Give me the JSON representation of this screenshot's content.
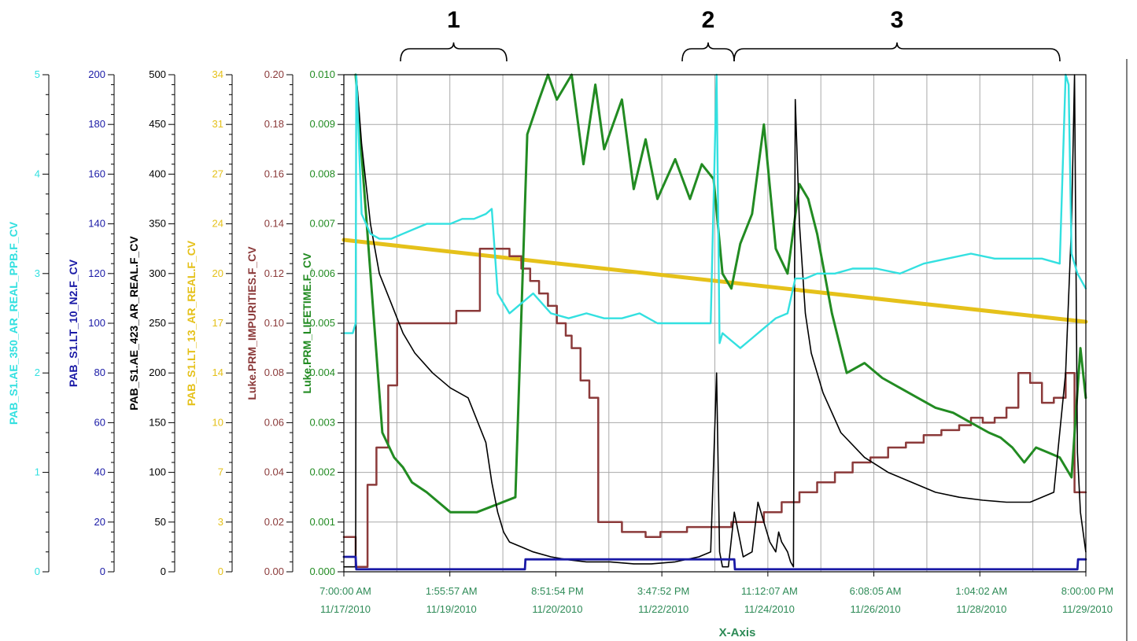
{
  "chart_data": {
    "type": "line",
    "xlabel": "X-Axis",
    "x_tick_labels": [
      [
        "7:00:00 AM",
        "11/17/2010"
      ],
      [
        "1:55:57 AM",
        "11/19/2010"
      ],
      [
        "8:51:54 PM",
        "11/20/2010"
      ],
      [
        "3:47:52 PM",
        "11/22/2010"
      ],
      [
        "11:12:07 AM",
        "11/24/2010"
      ],
      [
        "6:08:05 AM",
        "11/26/2010"
      ],
      [
        "1:04:02 AM",
        "11/28/2010"
      ],
      [
        "8:00:00 PM",
        "11/29/2010"
      ]
    ],
    "x_range_days": [
      0,
      12.5417
    ],
    "annotations": [
      {
        "label": "1",
        "from_day": 0.37,
        "to_day": 2.72
      },
      {
        "label": "2",
        "from_day": 6.55,
        "to_day": 7.63
      },
      {
        "label": "3",
        "from_day": 7.63,
        "to_day": 15.0
      }
    ],
    "axes": [
      {
        "id": "ax1",
        "label": "PAB_S1.AE_350_AR_REAL_PPB.F_CV",
        "color": "#33e0e0",
        "ylim": [
          0,
          5
        ],
        "ticks": [
          "0",
          "1",
          "2",
          "3",
          "4",
          "5"
        ]
      },
      {
        "id": "ax2",
        "label": "PAB_S1.LT_10_N2.F_CV",
        "color": "#1a1aa6",
        "ylim": [
          0,
          200
        ],
        "ticks": [
          "0",
          "20",
          "40",
          "60",
          "80",
          "100",
          "120",
          "140",
          "160",
          "180",
          "200"
        ]
      },
      {
        "id": "ax3",
        "label": "PAB_S1.AE_423_AR_REAL.F_CV",
        "color": "#000000",
        "ylim": [
          0,
          500
        ],
        "ticks": [
          "0",
          "50",
          "100",
          "150",
          "200",
          "250",
          "300",
          "350",
          "400",
          "450",
          "500"
        ]
      },
      {
        "id": "ax4",
        "label": "PAB_S1.LT_13_AR_REAL.F_CV",
        "color": "#e5c11a",
        "ylim": [
          0,
          34
        ],
        "ticks": [
          "0",
          "3",
          "7",
          "10",
          "14",
          "17",
          "20",
          "24",
          "27",
          "31",
          "34"
        ]
      },
      {
        "id": "ax5",
        "label": "Luke.PRM_IMPURITIES.F_CV",
        "color": "#8b3a3a",
        "ylim": [
          0,
          0.2
        ],
        "ticks": [
          "0.00",
          "0.02",
          "0.04",
          "0.06",
          "0.08",
          "0.10",
          "0.12",
          "0.14",
          "0.16",
          "0.18",
          "0.20"
        ]
      },
      {
        "id": "ax6",
        "label": "Luke.PRM_LIFETIME.F_CV",
        "color": "#228b22",
        "ylim": [
          0,
          0.01
        ],
        "ticks": [
          "0.000",
          "0.001",
          "0.002",
          "0.003",
          "0.004",
          "0.005",
          "0.006",
          "0.007",
          "0.008",
          "0.009",
          "0.010"
        ]
      }
    ],
    "series": [
      {
        "name": "PAB_S1.LT_13_AR_REAL.F_CV",
        "axis": "ax4",
        "color": "#e5c11a",
        "width": 5,
        "x": [
          0,
          12.54
        ],
        "y": [
          22.7,
          17.1
        ]
      },
      {
        "name": "Luke.PRM_IMPURITIES.F_CV",
        "axis": "ax5",
        "color": "#8b3a3a",
        "width": 2.5,
        "x": [
          0,
          0.2,
          0.2,
          0.4,
          0.4,
          0.55,
          0.55,
          0.75,
          0.75,
          0.9,
          0.9,
          1.05,
          1.05,
          1.25,
          1.25,
          1.55,
          1.55,
          1.9,
          1.9,
          2.3,
          2.3,
          2.45,
          2.45,
          2.5,
          2.5,
          2.8,
          2.8,
          3.0,
          3.0,
          3.15,
          3.15,
          3.3,
          3.3,
          3.45,
          3.45,
          3.6,
          3.6,
          3.75,
          3.75,
          3.85,
          3.85,
          4.0,
          4.0,
          4.15,
          4.15,
          4.3,
          4.3,
          4.5,
          4.5,
          4.7,
          4.7,
          4.85,
          4.85,
          5.1,
          5.1,
          5.35,
          5.35,
          5.6,
          5.6,
          5.8,
          5.8,
          6.05,
          6.05,
          6.3,
          6.3,
          6.55,
          6.55,
          7.1,
          7.1,
          7.4,
          7.4,
          7.7,
          7.7,
          8.0,
          8.0,
          8.3,
          8.3,
          8.6,
          8.6,
          8.9,
          8.9,
          9.2,
          9.2,
          9.5,
          9.5,
          9.8,
          9.8,
          10.1,
          10.1,
          10.4,
          10.4,
          10.6,
          10.6,
          10.8,
          10.8,
          11.0,
          11.0,
          11.2,
          11.2,
          11.4,
          11.4,
          11.6,
          11.6,
          11.8,
          11.8,
          12.0,
          12.0,
          12.2,
          12.2,
          12.35,
          12.35,
          12.54
        ],
        "y": [
          0.014,
          0.014,
          0.002,
          0.002,
          0.035,
          0.035,
          0.05,
          0.05,
          0.075,
          0.075,
          0.1,
          0.1,
          0.1,
          0.1,
          0.1,
          0.1,
          0.1,
          0.1,
          0.105,
          0.105,
          0.13,
          0.13,
          0.13,
          0.13,
          0.13,
          0.13,
          0.127,
          0.127,
          0.122,
          0.122,
          0.117,
          0.117,
          0.112,
          0.112,
          0.107,
          0.107,
          0.1,
          0.1,
          0.095,
          0.095,
          0.09,
          0.09,
          0.077,
          0.077,
          0.07,
          0.07,
          0.02,
          0.02,
          0.02,
          0.02,
          0.016,
          0.016,
          0.016,
          0.016,
          0.014,
          0.014,
          0.016,
          0.016,
          0.016,
          0.016,
          0.018,
          0.018,
          0.018,
          0.018,
          0.018,
          0.018,
          0.02,
          0.02,
          0.024,
          0.024,
          0.028,
          0.028,
          0.032,
          0.032,
          0.036,
          0.036,
          0.04,
          0.04,
          0.044,
          0.044,
          0.046,
          0.046,
          0.05,
          0.05,
          0.052,
          0.052,
          0.055,
          0.055,
          0.057,
          0.057,
          0.059,
          0.059,
          0.062,
          0.062,
          0.06,
          0.06,
          0.062,
          0.062,
          0.066,
          0.066,
          0.08,
          0.08,
          0.076,
          0.076,
          0.068,
          0.068,
          0.07,
          0.07,
          0.08,
          0.08,
          0.032,
          0.032
        ]
      },
      {
        "name": "Luke.PRM_LIFETIME.F_CV",
        "axis": "ax6",
        "color": "#228b22",
        "width": 3,
        "x": [
          0.2,
          0.2,
          0.45,
          0.45,
          0.65,
          0.65,
          0.85,
          0.85,
          1.0,
          1.0,
          1.15,
          1.15,
          1.4,
          1.4,
          1.8,
          1.8,
          2.25,
          2.25,
          2.9,
          2.9,
          3.1,
          3.1,
          3.3,
          3.3,
          3.45,
          3.45,
          3.6,
          3.6,
          3.85,
          3.85,
          4.05,
          4.05,
          4.25,
          4.25,
          4.4,
          4.4,
          4.7,
          4.7,
          4.9,
          4.9,
          5.1,
          5.1,
          5.3,
          5.3,
          5.6,
          5.6,
          5.85,
          5.85,
          6.05,
          6.05,
          6.25,
          6.25,
          6.4,
          6.4,
          6.55,
          6.55,
          6.7,
          6.7,
          6.9,
          6.9,
          7.1,
          7.1,
          7.3,
          7.3,
          7.5,
          7.5,
          7.7,
          7.7,
          7.85,
          7.85,
          8.0,
          8.0,
          8.25,
          8.25,
          8.5,
          8.5,
          8.8,
          8.8,
          9.1,
          9.1,
          9.4,
          9.4,
          9.7,
          9.7,
          10.0,
          10.0,
          10.3,
          10.3,
          10.6,
          10.6,
          10.9,
          10.9,
          11.1,
          11.1,
          11.3,
          11.3,
          11.5,
          11.5,
          11.7,
          11.7,
          11.9,
          11.9,
          12.1,
          12.1,
          12.3,
          12.3,
          12.45,
          12.45,
          12.54
        ],
        "y": [
          0.01,
          0.01,
          0.006,
          0.006,
          0.0028,
          0.0028,
          0.0023,
          0.0023,
          0.0021,
          0.0021,
          0.0018,
          0.0018,
          0.0016,
          0.0016,
          0.0012,
          0.0012,
          0.0012,
          0.0012,
          0.0015,
          0.0015,
          0.0088,
          0.0088,
          0.0095,
          0.0095,
          0.01,
          0.01,
          0.0095,
          0.0095,
          0.01,
          0.01,
          0.0082,
          0.0082,
          0.0098,
          0.0098,
          0.0085,
          0.0085,
          0.0095,
          0.0095,
          0.0077,
          0.0077,
          0.0087,
          0.0087,
          0.0075,
          0.0075,
          0.0083,
          0.0083,
          0.0075,
          0.0075,
          0.0082,
          0.0082,
          0.0079,
          0.0079,
          0.006,
          0.006,
          0.0057,
          0.0057,
          0.0066,
          0.0066,
          0.0072,
          0.0072,
          0.009,
          0.009,
          0.0065,
          0.0065,
          0.006,
          0.006,
          0.0078,
          0.0078,
          0.0075,
          0.0075,
          0.0068,
          0.0068,
          0.0052,
          0.0052,
          0.004,
          0.004,
          0.0042,
          0.0042,
          0.0039,
          0.0039,
          0.0037,
          0.0037,
          0.0035,
          0.0035,
          0.0033,
          0.0033,
          0.0032,
          0.0032,
          0.003,
          0.003,
          0.0028,
          0.0028,
          0.0027,
          0.0027,
          0.0025,
          0.0025,
          0.0022,
          0.0022,
          0.0025,
          0.0025,
          0.0024,
          0.0024,
          0.0023,
          0.0023,
          0.0019,
          0.0019,
          0.0045,
          0.0045,
          0.0035
        ]
      },
      {
        "name": "PAB_S1.AE_423_AR_REAL.F_CV",
        "axis": "ax3",
        "color": "#000000",
        "width": 1.6,
        "x": [
          0,
          0.2,
          0.21,
          0.3,
          0.45,
          0.6,
          0.8,
          1.0,
          1.2,
          1.5,
          1.8,
          2.1,
          2.4,
          2.5,
          2.6,
          2.7,
          2.8,
          3.0,
          3.2,
          3.5,
          3.8,
          4.1,
          4.5,
          4.9,
          5.2,
          5.6,
          6.0,
          6.2,
          6.3,
          6.35,
          6.4,
          6.5,
          6.6,
          6.7,
          6.75,
          6.9,
          7.0,
          7.1,
          7.2,
          7.3,
          7.35,
          7.4,
          7.45,
          7.5,
          7.55,
          7.6,
          7.63,
          7.7,
          7.8,
          7.9,
          8.1,
          8.4,
          8.8,
          9.2,
          9.6,
          10.0,
          10.4,
          10.8,
          11.2,
          11.6,
          12.0,
          12.2,
          12.3,
          12.35,
          12.4,
          12.45,
          12.54
        ],
        "y": [
          5,
          5,
          500,
          430,
          350,
          300,
          270,
          240,
          220,
          200,
          185,
          175,
          130,
          90,
          60,
          40,
          30,
          25,
          20,
          15,
          12,
          10,
          10,
          8,
          8,
          10,
          15,
          20,
          200,
          20,
          5,
          5,
          60,
          30,
          15,
          20,
          70,
          50,
          30,
          20,
          40,
          30,
          25,
          20,
          10,
          5,
          475,
          350,
          260,
          220,
          180,
          140,
          115,
          100,
          90,
          80,
          75,
          72,
          70,
          70,
          80,
          200,
          350,
          500,
          120,
          60,
          20
        ]
      },
      {
        "name": "PAB_S1.AE_350_AR_REAL_PPB.F_CV",
        "axis": "ax1",
        "color": "#33e0e0",
        "width": 2.4,
        "x": [
          0,
          0.15,
          0.2,
          0.21,
          0.3,
          0.45,
          0.6,
          0.8,
          1.0,
          1.2,
          1.4,
          1.6,
          1.8,
          2.0,
          2.2,
          2.4,
          2.5,
          2.6,
          2.8,
          3.0,
          3.2,
          3.5,
          3.8,
          4.1,
          4.4,
          4.7,
          5.0,
          5.3,
          5.6,
          5.9,
          6.2,
          6.3,
          6.35,
          6.4,
          6.5,
          6.7,
          6.9,
          7.1,
          7.3,
          7.5,
          7.63,
          7.8,
          8.0,
          8.3,
          8.6,
          9.0,
          9.4,
          9.8,
          10.2,
          10.6,
          11.0,
          11.4,
          11.8,
          12.1,
          12.2,
          12.25,
          12.3,
          12.4,
          12.54
        ],
        "y": [
          2.4,
          2.4,
          2.5,
          5.0,
          3.6,
          3.4,
          3.35,
          3.35,
          3.4,
          3.45,
          3.5,
          3.5,
          3.5,
          3.55,
          3.55,
          3.6,
          3.65,
          2.8,
          2.6,
          2.7,
          2.8,
          2.6,
          2.55,
          2.6,
          2.55,
          2.55,
          2.6,
          2.5,
          2.5,
          2.5,
          2.5,
          5.0,
          2.3,
          2.4,
          2.35,
          2.25,
          2.35,
          2.45,
          2.55,
          2.6,
          2.95,
          2.95,
          3.0,
          3.0,
          3.05,
          3.05,
          3.0,
          3.1,
          3.15,
          3.2,
          3.15,
          3.15,
          3.15,
          3.1,
          5.0,
          4.9,
          3.2,
          3.0,
          2.85
        ]
      },
      {
        "name": "PAB_S1.LT_10_N2.F_CV",
        "axis": "ax2",
        "color": "#1a1aa6",
        "width": 2.8,
        "x": [
          0,
          0.2,
          0.21,
          0.5,
          1.0,
          1.5,
          2.0,
          2.5,
          3.0,
          3.06,
          3.07,
          3.5,
          4.0,
          4.5,
          5.0,
          5.6,
          6.2,
          6.6,
          6.61,
          7.0,
          7.5,
          8.0,
          8.5,
          9.0,
          9.5,
          10.0,
          10.5,
          11.0,
          11.5,
          12.0,
          12.4,
          12.41,
          12.54
        ],
        "y": [
          6,
          6,
          1,
          1,
          1,
          1,
          1,
          1,
          1,
          1,
          5,
          5,
          5,
          5,
          5,
          5,
          5,
          5,
          1,
          1,
          1,
          1,
          1,
          1,
          1,
          1,
          1,
          1,
          1,
          1,
          1,
          5,
          5
        ]
      }
    ]
  }
}
